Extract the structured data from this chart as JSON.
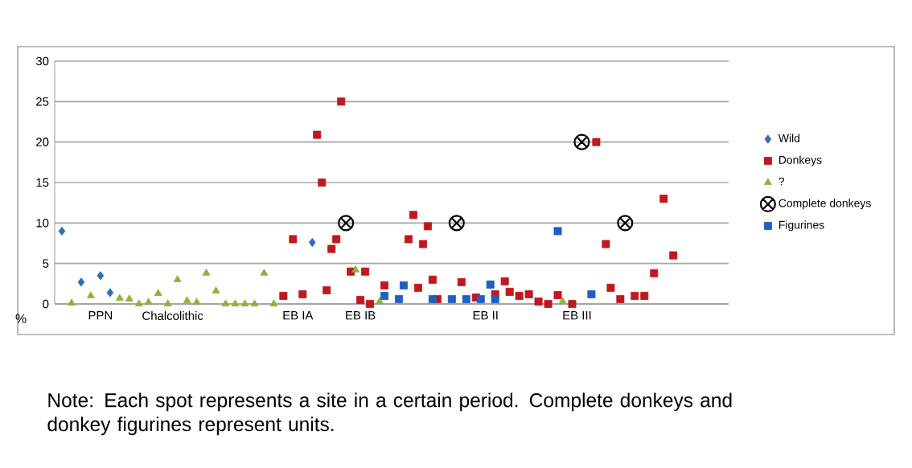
{
  "chart_data": {
    "type": "scatter",
    "ylabel": "%",
    "categories": [
      null,
      null,
      null,
      null,
      null,
      null,
      null,
      null,
      null,
      "PPN",
      null,
      null,
      null,
      null,
      null,
      null,
      null,
      null,
      null,
      null,
      null,
      null,
      null,
      null,
      "Chalcolithic",
      null,
      null,
      null,
      null,
      null,
      null,
      null,
      null,
      null,
      null,
      null,
      null,
      null,
      null,
      null,
      null,
      null,
      null,
      null,
      null,
      null,
      null,
      null,
      null,
      null,
      "EB IA",
      null,
      null,
      null,
      null,
      null,
      null,
      null,
      null,
      null,
      null,
      null,
      null,
      "EB IB",
      null,
      null,
      null,
      null,
      null,
      null,
      null,
      null,
      null,
      null,
      null,
      null,
      null,
      null,
      null,
      null,
      null,
      null,
      null,
      null,
      null,
      null,
      null,
      null,
      null,
      "EB II",
      null,
      null,
      null,
      null,
      null,
      null,
      null,
      null,
      null,
      null,
      null,
      null,
      null,
      null,
      null,
      null,
      null,
      null,
      "EB III",
      null,
      null,
      null,
      null,
      null,
      null,
      null,
      null,
      null,
      null,
      null,
      null,
      null,
      null,
      null,
      null,
      null,
      null,
      null,
      null,
      null,
      null,
      null,
      null,
      null,
      null,
      null,
      null,
      null,
      null,
      null
    ],
    "ylim": [
      0,
      30
    ],
    "yticks": [
      0,
      5,
      10,
      15,
      20,
      25,
      30
    ],
    "grid": "y",
    "legend": "right",
    "series": [
      {
        "name": "Wild",
        "color": "#2e6fb7",
        "marker": "diamond",
        "values": [
          null,
          9.0,
          null,
          null,
          null,
          2.7,
          null,
          null,
          null,
          3.5,
          null,
          1.4,
          null,
          null,
          null,
          null,
          null,
          null,
          null,
          null,
          null,
          null,
          null,
          null,
          null,
          null,
          null,
          null,
          null,
          null,
          null,
          null,
          null,
          null,
          null,
          null,
          null,
          null,
          null,
          null,
          null,
          null,
          null,
          null,
          null,
          null,
          null,
          null,
          null,
          null,
          null,
          null,
          null,
          7.6,
          null,
          null,
          null,
          null,
          null,
          null,
          null,
          null,
          null,
          null,
          null,
          null,
          null,
          null,
          null,
          null,
          null,
          null,
          null,
          null,
          null,
          null,
          null,
          null,
          null,
          null,
          null,
          null,
          null,
          null,
          null,
          null,
          null,
          null,
          null,
          null,
          null,
          null,
          null,
          null,
          null,
          null,
          null,
          null,
          null,
          null,
          null,
          null,
          null,
          null,
          null,
          null,
          null,
          null,
          null,
          null,
          null,
          null,
          null,
          null,
          null,
          null,
          null,
          null,
          null,
          null,
          null,
          null,
          null,
          null,
          null,
          null,
          null,
          null,
          null,
          null,
          null,
          null,
          null,
          null,
          null,
          null,
          null,
          null,
          null,
          null
        ]
      },
      {
        "name": "Donkeys",
        "color": "#c0181e",
        "marker": "square",
        "values": [
          null,
          null,
          null,
          null,
          null,
          null,
          null,
          null,
          null,
          null,
          null,
          null,
          null,
          null,
          null,
          null,
          null,
          null,
          null,
          null,
          null,
          null,
          null,
          null,
          null,
          null,
          null,
          null,
          null,
          null,
          null,
          null,
          null,
          null,
          null,
          null,
          null,
          null,
          null,
          null,
          null,
          null,
          null,
          null,
          null,
          null,
          null,
          1.0,
          null,
          8.0,
          null,
          1.2,
          null,
          null,
          20.9,
          15.0,
          1.7,
          6.8,
          8.0,
          25.0,
          null,
          4.0,
          null,
          0.5,
          4.0,
          0,
          null,
          null,
          2.3,
          null,
          null,
          null,
          null,
          8.0,
          11.0,
          2.0,
          7.4,
          9.6,
          3.0,
          0.6,
          null,
          null,
          null,
          null,
          2.7,
          null,
          null,
          0.8,
          null,
          null,
          null,
          1.2,
          null,
          2.8,
          1.5,
          null,
          1.0,
          null,
          1.2,
          null,
          0.3,
          null,
          0,
          null,
          1.1,
          null,
          null,
          0,
          null,
          null,
          null,
          null,
          20.0,
          null,
          7.4,
          2.0,
          null,
          0.6,
          null,
          null,
          1.0,
          null,
          1.0,
          null,
          3.8,
          null,
          13.0,
          null,
          6.0,
          null,
          null,
          null,
          null,
          null,
          null,
          null,
          null,
          null,
          null,
          null
        ]
      },
      {
        "name": "?",
        "color": "#8db33a",
        "marker": "triangle",
        "values": [
          null,
          null,
          null,
          0.1,
          null,
          null,
          null,
          1.0,
          null,
          null,
          null,
          null,
          null,
          0.7,
          null,
          0.6,
          null,
          0,
          null,
          0.2,
          null,
          1.3,
          null,
          0,
          null,
          3.0,
          null,
          0.4,
          null,
          0.2,
          null,
          3.8,
          null,
          1.6,
          null,
          0,
          null,
          0,
          null,
          0,
          null,
          0,
          null,
          3.8,
          null,
          0,
          null,
          null,
          null,
          null,
          null,
          null,
          null,
          null,
          null,
          null,
          null,
          null,
          null,
          null,
          null,
          null,
          4.2,
          null,
          null,
          null,
          null,
          0.3,
          null,
          null,
          null,
          null,
          null,
          null,
          null,
          null,
          null,
          null,
          null,
          null,
          null,
          null,
          null,
          null,
          null,
          null,
          null,
          null,
          null,
          null,
          null,
          null,
          null,
          null,
          null,
          null,
          null,
          null,
          null,
          null,
          null,
          null,
          null,
          null,
          null,
          0.3,
          null,
          null,
          null,
          null,
          null,
          null,
          null,
          null,
          null,
          null,
          null,
          null,
          null,
          null,
          null,
          null,
          null,
          null,
          null,
          null,
          null,
          null,
          null,
          null,
          null,
          null,
          null,
          null,
          null,
          null,
          null,
          null,
          null,
          null
        ]
      },
      {
        "name": "Complete donkeys",
        "color": "#000000",
        "marker": "cross",
        "values": [
          null,
          null,
          null,
          null,
          null,
          null,
          null,
          null,
          null,
          null,
          null,
          null,
          null,
          null,
          null,
          null,
          null,
          null,
          null,
          null,
          null,
          null,
          null,
          null,
          null,
          null,
          null,
          null,
          null,
          null,
          null,
          null,
          null,
          null,
          null,
          null,
          null,
          null,
          null,
          null,
          null,
          null,
          null,
          null,
          null,
          null,
          null,
          null,
          null,
          null,
          null,
          null,
          null,
          null,
          null,
          null,
          null,
          null,
          null,
          null,
          10,
          null,
          null,
          null,
          null,
          null,
          null,
          null,
          null,
          null,
          null,
          null,
          null,
          null,
          null,
          null,
          null,
          null,
          null,
          null,
          null,
          null,
          null,
          10,
          null,
          null,
          null,
          null,
          null,
          null,
          null,
          null,
          null,
          null,
          null,
          null,
          null,
          null,
          null,
          null,
          null,
          null,
          null,
          null,
          null,
          null,
          null,
          null,
          null,
          20,
          null,
          null,
          null,
          null,
          null,
          null,
          null,
          null,
          10,
          null,
          null,
          null,
          null,
          null,
          null,
          null,
          null,
          null,
          null,
          null,
          null,
          null,
          null,
          null,
          null,
          null,
          null,
          null,
          null,
          null
        ]
      },
      {
        "name": "Figurines",
        "color": "#1f5fbf",
        "marker": "square",
        "values": [
          null,
          null,
          null,
          null,
          null,
          null,
          null,
          null,
          null,
          null,
          null,
          null,
          null,
          null,
          null,
          null,
          null,
          null,
          null,
          null,
          null,
          null,
          null,
          null,
          null,
          null,
          null,
          null,
          null,
          null,
          null,
          null,
          null,
          null,
          null,
          null,
          null,
          null,
          null,
          null,
          null,
          null,
          null,
          null,
          null,
          null,
          null,
          null,
          null,
          null,
          null,
          null,
          null,
          null,
          null,
          null,
          null,
          null,
          null,
          null,
          null,
          null,
          null,
          null,
          null,
          null,
          null,
          null,
          1.0,
          null,
          null,
          0.6,
          2.3,
          null,
          null,
          null,
          null,
          null,
          0.6,
          null,
          null,
          null,
          0.6,
          null,
          null,
          0.6,
          null,
          null,
          0.6,
          null,
          2.4,
          0.6,
          null,
          null,
          null,
          null,
          null,
          null,
          null,
          null,
          null,
          null,
          null,
          null,
          9.0,
          null,
          null,
          null,
          null,
          null,
          null,
          1.2,
          null,
          null,
          null,
          null,
          null,
          null,
          null,
          null,
          null,
          null,
          null,
          null,
          null,
          null,
          null,
          null,
          null,
          null,
          null,
          null,
          null,
          null,
          null,
          null,
          null,
          null,
          null,
          null
        ]
      }
    ],
    "annotations": [
      "Note: Each spot represents a site in a certain period. Complete donkeys and donkey figurines represent units."
    ]
  }
}
